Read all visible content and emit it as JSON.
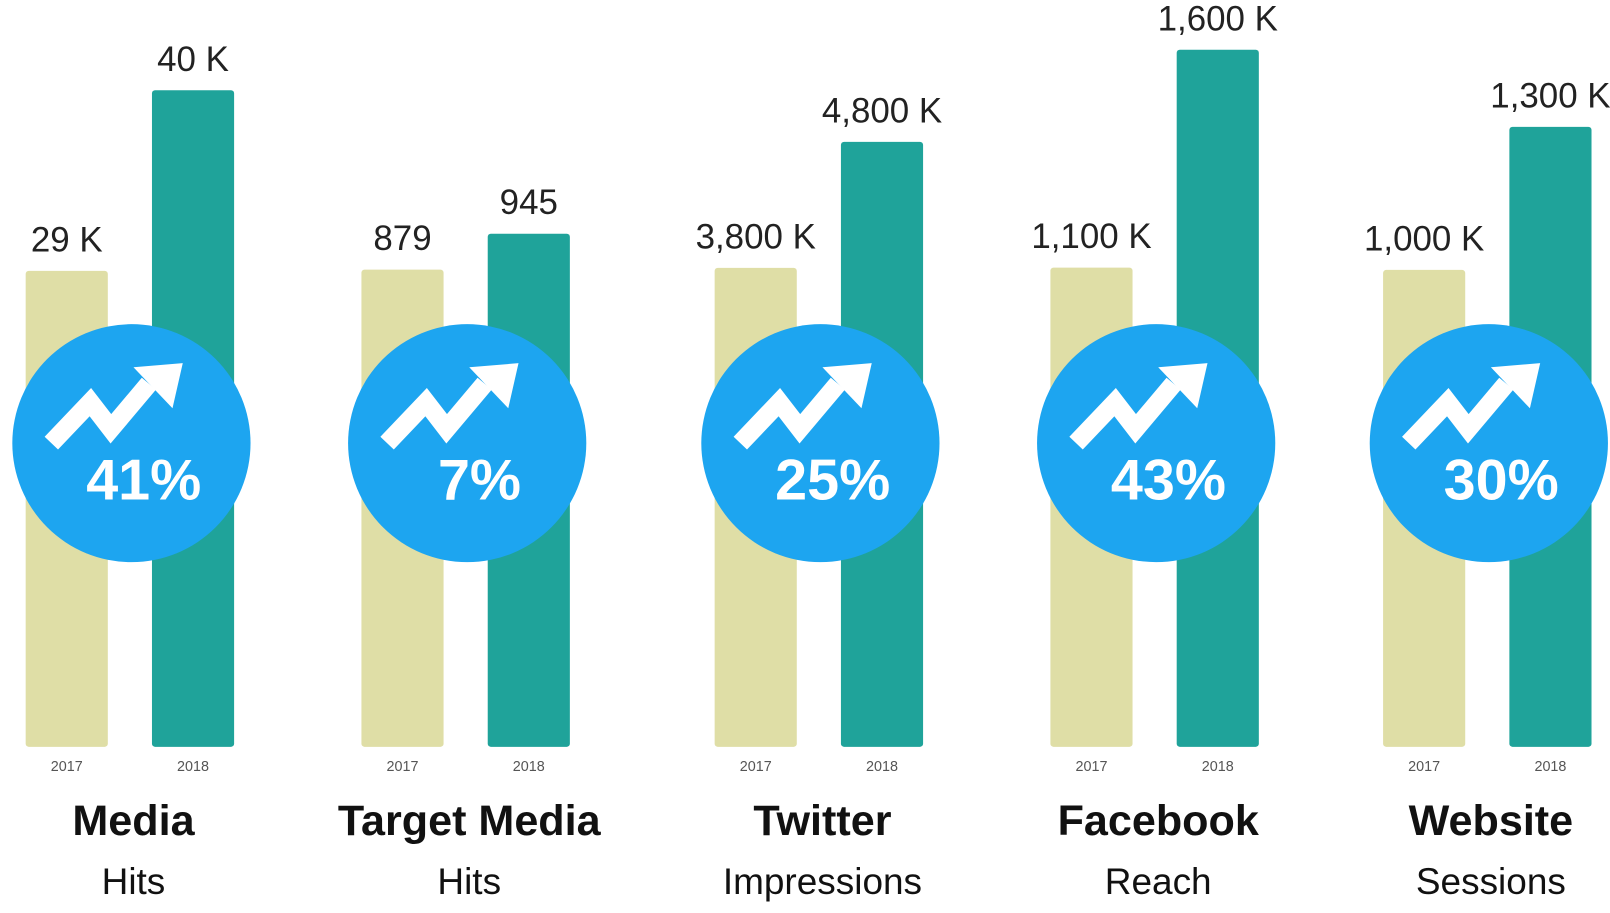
{
  "chart_data": [
    {
      "type": "bar",
      "title": "Media",
      "subtitle": "Hits",
      "annotation": "41%",
      "categories": [
        "2017",
        "2018"
      ],
      "values": [
        29,
        40
      ],
      "value_labels": [
        "29 K",
        "40 K"
      ],
      "colors": [
        "#dfdea6",
        "#1fa39a"
      ],
      "ylim": [
        0,
        43
      ]
    },
    {
      "type": "bar",
      "title": "Target Media",
      "subtitle": "Hits",
      "annotation": "7%",
      "categories": [
        "2017",
        "2018"
      ],
      "values": [
        879,
        945
      ],
      "colors": [
        "#dfdea6",
        "#1fa39a"
      ],
      "ylim": [
        0,
        1300
      ]
    },
    {
      "type": "bar",
      "title": "Twitter",
      "subtitle": "Impressions",
      "annotation": "25%",
      "categories": [
        "2017",
        "2018"
      ],
      "values": [
        3800,
        4800
      ],
      "value_labels": [
        "3,800 K",
        "4,800 K"
      ],
      "colors": [
        "#dfdea6",
        "#1fa39a"
      ],
      "ylim": [
        0,
        5600
      ]
    },
    {
      "type": "bar",
      "title": "Facebook",
      "subtitle": "Reach",
      "annotation": "43%",
      "categories": [
        "2017",
        "2018"
      ],
      "values": [
        1100,
        1600
      ],
      "value_labels": [
        "1,100 K",
        "1,600 K"
      ],
      "colors": [
        "#dfdea6",
        "#1fa39a"
      ],
      "ylim": [
        0,
        1620
      ]
    },
    {
      "type": "bar",
      "title": "Website",
      "subtitle": "Sessions",
      "annotation": "30%",
      "categories": [
        "2017",
        "2018"
      ],
      "values": [
        1000,
        1300
      ],
      "value_labels": [
        "1,000 K",
        "1,300 K"
      ],
      "colors": [
        "#dfdea6",
        "#1fa39a"
      ],
      "ylim": [
        0,
        1480
      ]
    }
  ]
}
